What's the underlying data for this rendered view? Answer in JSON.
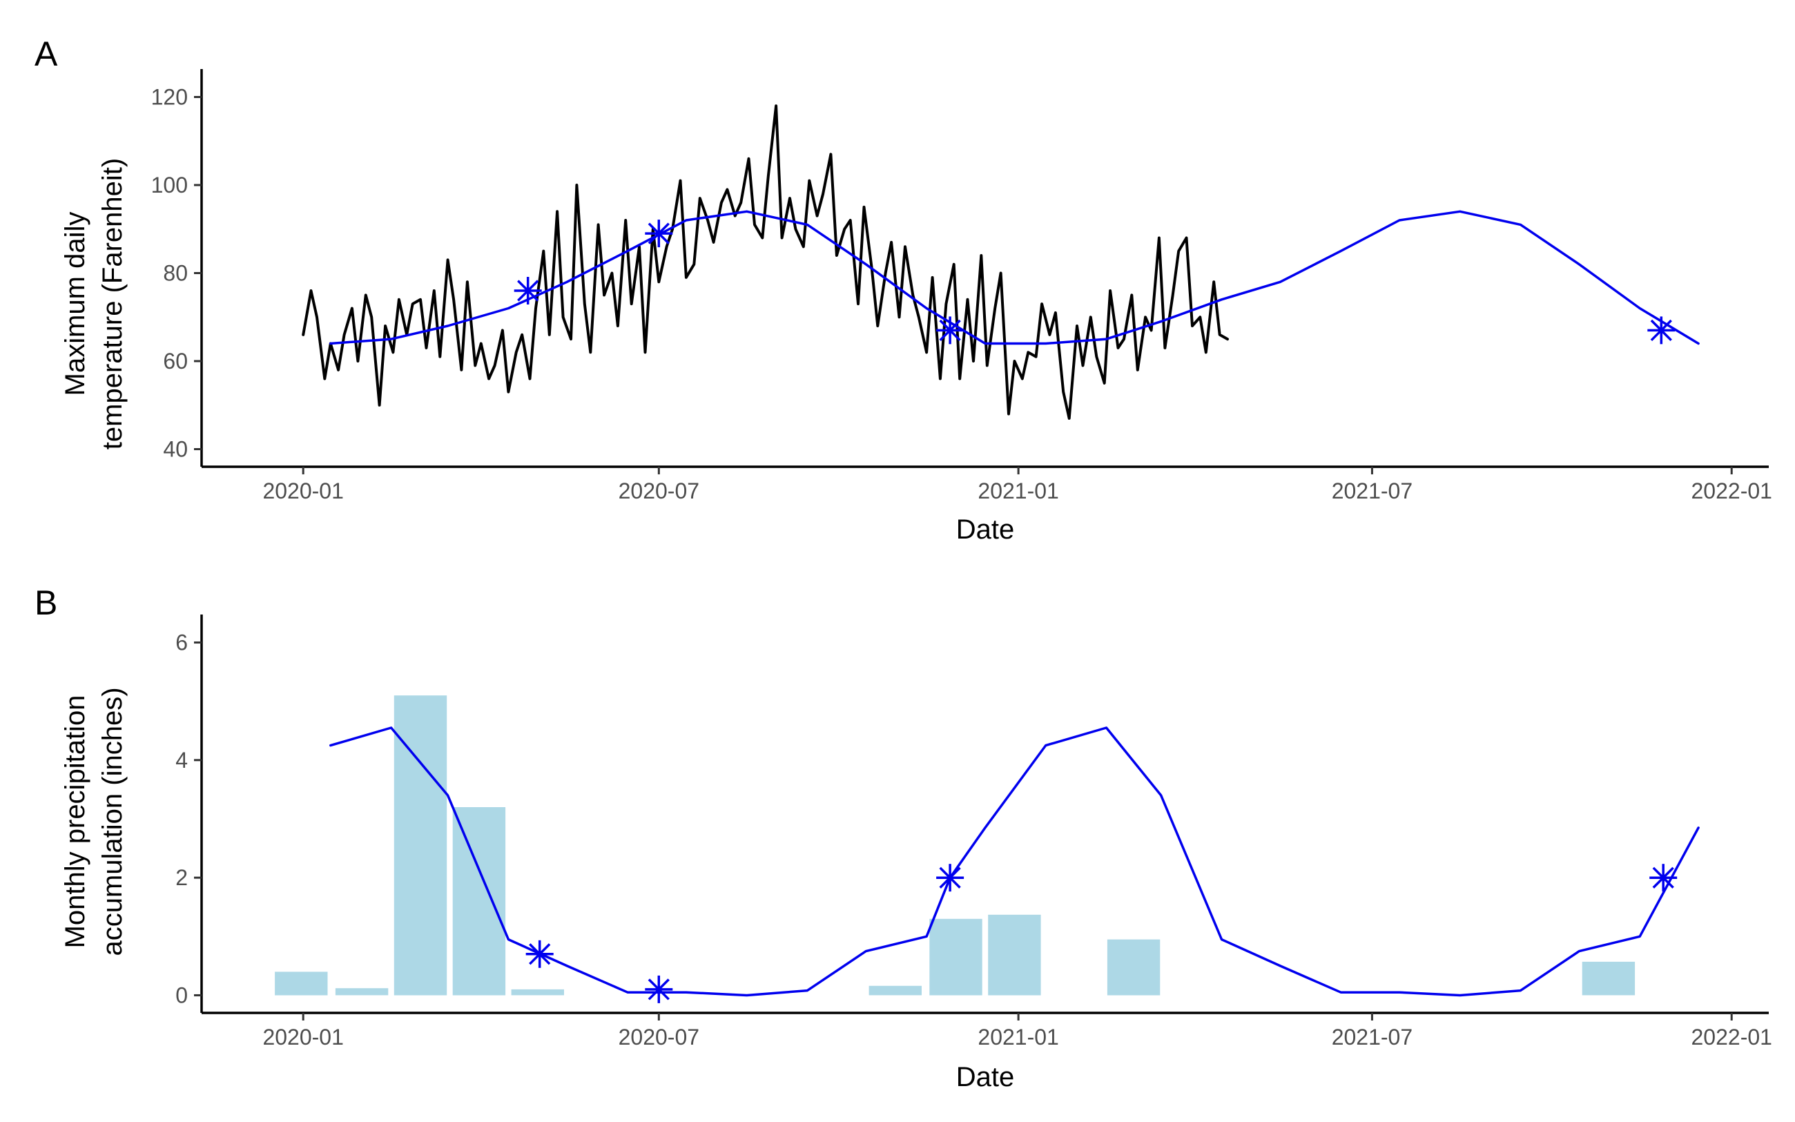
{
  "chart_data": [
    {
      "panel": "A",
      "type": "line",
      "xlabel": "Date",
      "ylabel_lines": [
        "Maximum daily",
        "temperature (Farenheit)"
      ],
      "ylim": [
        36,
        124
      ],
      "yticks": [
        40,
        60,
        80,
        100,
        120
      ],
      "xlim": [
        "2019-11-10",
        "2022-01-20"
      ],
      "xticks": [
        {
          "date": "2020-01-01",
          "label": "2020-01"
        },
        {
          "date": "2020-07-01",
          "label": "2020-07"
        },
        {
          "date": "2021-01-01",
          "label": "2021-01"
        },
        {
          "date": "2021-07-01",
          "label": "2021-07"
        },
        {
          "date": "2022-01-01",
          "label": "2022-01"
        }
      ],
      "grid": false,
      "series": [
        {
          "kind": "daily line",
          "color": "#000000",
          "x": [
            "2020-01-01",
            "2020-01-05",
            "2020-01-08",
            "2020-01-12",
            "2020-01-15",
            "2020-01-19",
            "2020-01-22",
            "2020-01-26",
            "2020-01-29",
            "2020-02-02",
            "2020-02-05",
            "2020-02-09",
            "2020-02-12",
            "2020-02-16",
            "2020-02-19",
            "2020-02-23",
            "2020-02-26",
            "2020-03-01",
            "2020-03-04",
            "2020-03-08",
            "2020-03-11",
            "2020-03-15",
            "2020-03-18",
            "2020-03-22",
            "2020-03-25",
            "2020-03-29",
            "2020-04-01",
            "2020-04-05",
            "2020-04-08",
            "2020-04-12",
            "2020-04-15",
            "2020-04-19",
            "2020-04-22",
            "2020-04-26",
            "2020-04-29",
            "2020-05-03",
            "2020-05-06",
            "2020-05-10",
            "2020-05-13",
            "2020-05-17",
            "2020-05-20",
            "2020-05-24",
            "2020-05-27",
            "2020-05-31",
            "2020-06-03",
            "2020-06-07",
            "2020-06-10",
            "2020-06-14",
            "2020-06-17",
            "2020-06-21",
            "2020-06-24",
            "2020-06-28",
            "2020-07-01",
            "2020-07-05",
            "2020-07-08",
            "2020-07-12",
            "2020-07-15",
            "2020-07-19",
            "2020-07-22",
            "2020-07-26",
            "2020-07-29",
            "2020-08-02",
            "2020-08-05",
            "2020-08-09",
            "2020-08-12",
            "2020-08-16",
            "2020-08-19",
            "2020-08-23",
            "2020-08-26",
            "2020-08-30",
            "2020-09-02",
            "2020-09-06",
            "2020-09-09",
            "2020-09-13",
            "2020-09-16",
            "2020-09-20",
            "2020-09-23",
            "2020-09-27",
            "2020-09-30",
            "2020-10-04",
            "2020-10-07",
            "2020-10-11",
            "2020-10-14",
            "2020-10-18",
            "2020-10-21",
            "2020-10-25",
            "2020-10-28",
            "2020-11-01",
            "2020-11-04",
            "2020-11-08",
            "2020-11-11",
            "2020-11-15",
            "2020-11-18",
            "2020-11-22",
            "2020-11-25",
            "2020-11-29",
            "2020-12-02",
            "2020-12-06",
            "2020-12-09",
            "2020-12-13",
            "2020-12-16",
            "2020-12-20",
            "2020-12-23",
            "2020-12-27",
            "2020-12-30",
            "2021-01-03",
            "2021-01-06",
            "2021-01-10",
            "2021-01-13",
            "2021-01-17",
            "2021-01-20",
            "2021-01-24",
            "2021-01-27",
            "2021-01-31",
            "2021-02-03",
            "2021-02-07",
            "2021-02-10",
            "2021-02-14",
            "2021-02-17",
            "2021-02-21",
            "2021-02-24",
            "2021-02-28",
            "2021-03-03",
            "2021-03-07",
            "2021-03-10",
            "2021-03-14",
            "2021-03-17",
            "2021-03-21",
            "2021-03-24",
            "2021-03-28",
            "2021-03-31",
            "2021-04-04",
            "2021-04-07",
            "2021-04-11",
            "2021-04-14",
            "2021-04-18"
          ],
          "values": [
            66,
            76,
            70,
            56,
            64,
            58,
            66,
            72,
            60,
            75,
            70,
            50,
            68,
            62,
            74,
            66,
            73,
            74,
            63,
            76,
            61,
            83,
            74,
            58,
            78,
            59,
            64,
            56,
            59,
            67,
            53,
            62,
            66,
            56,
            72,
            85,
            66,
            94,
            70,
            65,
            100,
            73,
            62,
            91,
            75,
            80,
            68,
            92,
            73,
            86,
            62,
            90,
            78,
            86,
            90,
            101,
            79,
            82,
            97,
            92,
            87,
            96,
            99,
            93,
            96,
            106,
            91,
            88,
            102,
            118,
            88,
            97,
            90,
            86,
            101,
            93,
            98,
            107,
            84,
            90,
            92,
            73,
            95,
            81,
            68,
            80,
            87,
            70,
            86,
            75,
            70,
            62,
            79,
            56,
            73,
            82,
            56,
            74,
            60,
            84,
            59,
            72,
            80,
            48,
            60,
            56,
            62,
            61,
            73,
            66,
            71,
            53,
            47,
            68,
            59,
            70,
            61,
            55,
            76,
            63,
            65,
            75,
            58,
            70,
            67,
            88,
            63,
            75,
            85,
            88,
            68,
            70,
            62,
            78,
            66,
            65
          ]
        },
        {
          "kind": "smoothed line",
          "color": "#0000ee",
          "x": [
            "2020-01-15",
            "2020-02-15",
            "2020-03-15",
            "2020-04-15",
            "2020-05-15",
            "2020-06-15",
            "2020-07-15",
            "2020-08-15",
            "2020-09-15",
            "2020-10-15",
            "2020-11-15",
            "2020-12-15",
            "2021-01-15",
            "2021-02-15",
            "2021-03-15",
            "2021-04-15",
            "2021-05-15",
            "2021-06-15",
            "2021-07-15",
            "2021-08-15",
            "2021-09-15",
            "2021-10-15",
            "2021-11-15",
            "2021-12-15"
          ],
          "values": [
            64,
            65,
            68,
            72,
            78,
            85,
            92,
            94,
            91,
            82,
            72,
            64,
            64,
            65,
            69,
            74,
            78,
            85,
            92,
            94,
            91,
            82,
            72,
            64
          ]
        }
      ],
      "markers": {
        "shape": "asterisk",
        "color": "#0000ee",
        "points": [
          {
            "x": "2020-04-25",
            "y": 76
          },
          {
            "x": "2020-07-01",
            "y": 89
          },
          {
            "x": "2020-11-27",
            "y": 67
          },
          {
            "x": "2021-11-26",
            "y": 67
          }
        ]
      }
    },
    {
      "panel": "B",
      "type": "bar",
      "xlabel": "Date",
      "ylabel_lines": [
        "Monthly precipitation",
        "accumulation (inches)"
      ],
      "ylim": [
        -0.3,
        6.3
      ],
      "yticks": [
        0,
        2,
        4,
        6
      ],
      "xlim": [
        "2019-11-10",
        "2022-01-20"
      ],
      "xticks": [
        {
          "date": "2020-01-01",
          "label": "2020-01"
        },
        {
          "date": "2020-07-01",
          "label": "2020-07"
        },
        {
          "date": "2021-01-01",
          "label": "2021-01"
        },
        {
          "date": "2021-07-01",
          "label": "2021-07"
        },
        {
          "date": "2022-01-01",
          "label": "2022-01"
        }
      ],
      "grid": false,
      "bars": {
        "color": "#add8e6",
        "x": [
          "2019-12-31",
          "2020-01-31",
          "2020-03-01",
          "2020-03-31",
          "2020-04-30",
          "2020-05-30",
          "2020-06-30",
          "2020-07-30",
          "2020-08-30",
          "2020-09-30",
          "2020-10-30",
          "2020-11-30",
          "2020-12-30",
          "2021-01-30",
          "2021-03-01",
          "2021-03-31",
          "2021-04-30",
          "2021-05-30",
          "2021-06-30",
          "2021-07-30",
          "2021-08-30",
          "2021-09-30",
          "2021-10-30",
          "2021-11-30"
        ],
        "values": [
          0.4,
          0.12,
          5.1,
          3.2,
          0.1,
          0,
          0,
          0,
          0,
          0,
          0.16,
          1.3,
          1.37,
          0,
          0.95,
          0,
          0,
          0,
          0,
          0,
          0,
          0,
          0.57,
          0
        ]
      },
      "series": [
        {
          "kind": "smoothed line",
          "color": "#0000ee",
          "x": [
            "2020-01-15",
            "2020-02-15",
            "2020-03-15",
            "2020-04-15",
            "2020-05-15",
            "2020-06-15",
            "2020-07-15",
            "2020-08-15",
            "2020-09-15",
            "2020-10-15",
            "2020-11-15",
            "2020-11-27",
            "2020-12-15",
            "2021-01-15",
            "2021-02-15",
            "2021-03-15",
            "2021-04-15",
            "2021-05-15",
            "2021-06-15",
            "2021-07-15",
            "2021-08-15",
            "2021-09-15",
            "2021-10-15",
            "2021-11-15",
            "2021-12-15"
          ],
          "values": [
            4.25,
            4.55,
            3.4,
            0.95,
            0.5,
            0.05,
            0.05,
            0,
            0.08,
            0.75,
            1,
            2,
            2.85,
            4.25,
            4.55,
            3.4,
            0.95,
            0.5,
            0.05,
            0.05,
            0,
            0.08,
            0.75,
            1,
            2.85
          ]
        }
      ],
      "markers": {
        "shape": "asterisk",
        "color": "#0000ee",
        "points": [
          {
            "x": "2020-05-01",
            "y": 0.7
          },
          {
            "x": "2020-07-01",
            "y": 0.1
          },
          {
            "x": "2020-11-27",
            "y": 2
          },
          {
            "x": "2021-11-27",
            "y": 2
          }
        ]
      }
    }
  ]
}
